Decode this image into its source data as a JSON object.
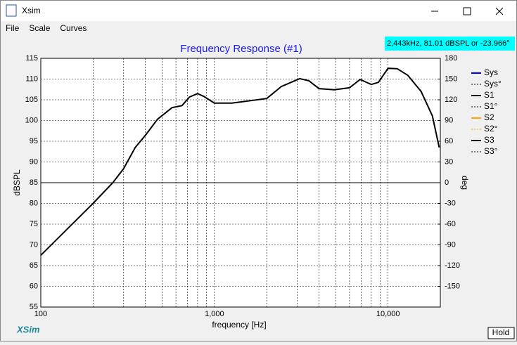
{
  "window": {
    "title": "Xsim",
    "menu": [
      "File",
      "Scale",
      "Curves"
    ],
    "readout": "2,443kHz, 81.01 dBSPL or -23.966°",
    "brand": "XSim",
    "hold": "Hold"
  },
  "chart_data": {
    "type": "line",
    "title": "Frequency Response (#1)",
    "x_label": "frequency [Hz]",
    "y_label": "dBSPL",
    "y2_label": "deg",
    "log_x": true,
    "grid": true,
    "xlim": [
      100,
      20000
    ],
    "xticks": [
      100,
      {
        "value": 1000,
        "label": "1,000"
      },
      {
        "value": 10000,
        "label": "10,000"
      }
    ],
    "ylim": [
      55,
      115
    ],
    "yticks": [
      55,
      60,
      65,
      70,
      75,
      80,
      85,
      90,
      95,
      100,
      105,
      110,
      115
    ],
    "y2lim": [
      -180,
      180
    ],
    "y2ticks": [
      -150,
      -120,
      -90,
      -60,
      -30,
      0,
      30,
      60,
      90,
      120,
      150,
      180
    ],
    "x": [
      100,
      200,
      260,
      300,
      350,
      400,
      470,
      570,
      650,
      720,
      800,
      870,
      1000,
      1260,
      2000,
      2430,
      3100,
      3500,
      4000,
      4900,
      6000,
      6900,
      8000,
      8800,
      10000,
      11300,
      13000,
      15500,
      18000,
      19700
    ],
    "series": [
      {
        "name": "Sys",
        "color": "#0000ff",
        "dash": false
      },
      {
        "name": "Sys°",
        "color": "#000000",
        "dash": true
      },
      {
        "name": "S1",
        "color": "#000000",
        "dash": false
      },
      {
        "name": "S1°",
        "color": "#000000",
        "dash": true
      },
      {
        "name": "S2",
        "color": "#ffa500",
        "dash": false
      },
      {
        "name": "S2°",
        "color": "#ffa500",
        "dash": true
      },
      {
        "name": "S3",
        "color": "#000000",
        "dash": false,
        "values": [
          67.5,
          80,
          85,
          88.4,
          93.5,
          96.4,
          100.3,
          103.1,
          103.6,
          105.7,
          106.5,
          105.8,
          104.2,
          104.2,
          105.3,
          108.2,
          110.1,
          109.6,
          107.7,
          107.4,
          107.9,
          109.9,
          108.7,
          109.2,
          112.6,
          112.5,
          110.9,
          107,
          101.1,
          93.5
        ]
      },
      {
        "name": "S3°",
        "color": "#000000",
        "dash": true
      }
    ]
  }
}
